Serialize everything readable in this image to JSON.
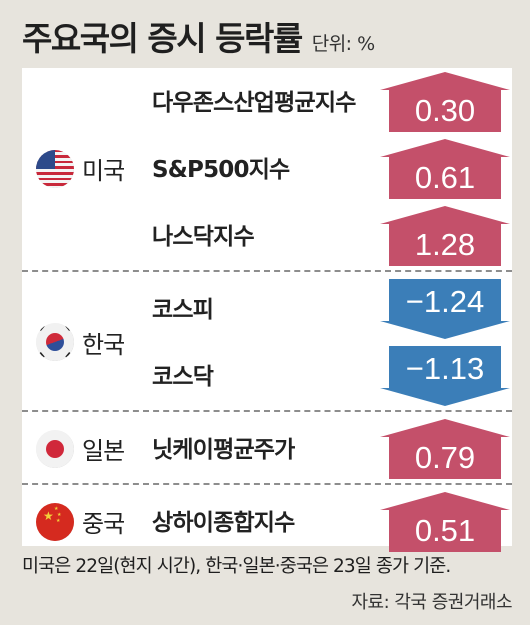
{
  "header": {
    "title": "주요국의 증시 등락률",
    "unit": "단위: %"
  },
  "chart_data": {
    "type": "bar",
    "title": "주요국의 증시 등락률",
    "unit": "단위: %",
    "colors": {
      "up": "#c4506a",
      "down": "#3b7eb8"
    },
    "groups": [
      {
        "country": "미국",
        "flag_icon": "us-flag-icon",
        "items": [
          {
            "label": "다우존스산업평균지수",
            "value": 0.3,
            "display": "0.30"
          },
          {
            "label": "S&P500지수",
            "value": 0.61,
            "display": "0.61"
          },
          {
            "label": "나스닥지수",
            "value": 1.28,
            "display": "1.28"
          }
        ]
      },
      {
        "country": "한국",
        "flag_icon": "korea-flag-icon",
        "items": [
          {
            "label": "코스피",
            "value": -1.24,
            "display": "−1.24"
          },
          {
            "label": "코스닥",
            "value": -1.13,
            "display": "−1.13"
          }
        ]
      },
      {
        "country": "일본",
        "flag_icon": "japan-flag-icon",
        "items": [
          {
            "label": "닛케이평균주가",
            "value": 0.79,
            "display": "0.79"
          }
        ]
      },
      {
        "country": "중국",
        "flag_icon": "china-flag-icon",
        "items": [
          {
            "label": "상하이종합지수",
            "value": 0.51,
            "display": "0.51"
          }
        ]
      }
    ]
  },
  "footer": {
    "note": "미국은 22일(현지 시간), 한국·일본·중국은 23일 종가 기준.",
    "source": "자료: 각국 증권거래소"
  }
}
